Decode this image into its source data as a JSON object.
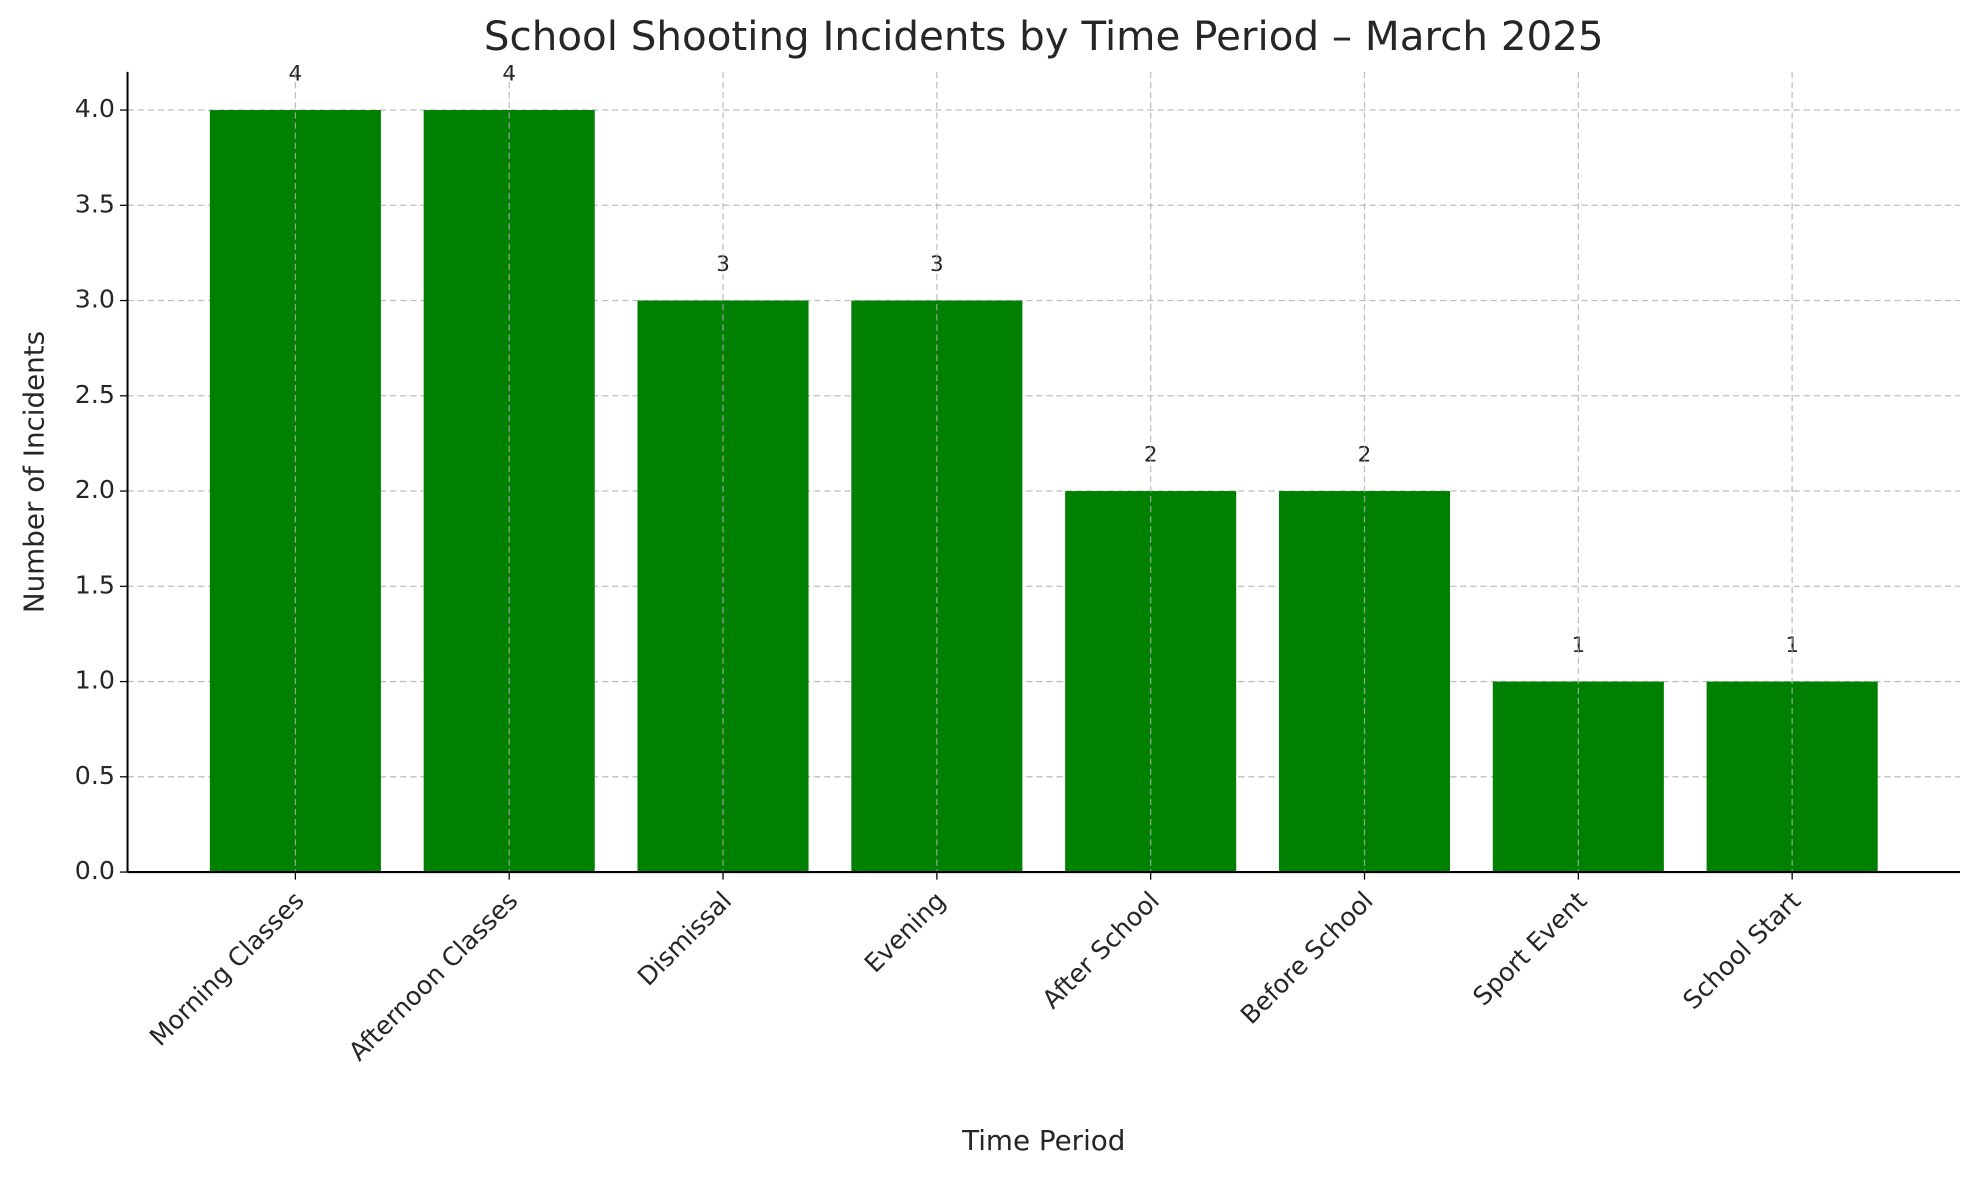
{
  "chart_data": {
    "type": "bar",
    "title": "School Shooting Incidents by Time Period – March 2025",
    "x_label": "Time Period",
    "y_label": "Number of Incidents",
    "categories": [
      "Morning Classes",
      "Afternoon Classes",
      "Dismissal",
      "Evening",
      "After School",
      "Before School",
      "Sport Event",
      "School Start"
    ],
    "values": [
      4,
      4,
      3,
      3,
      2,
      2,
      1,
      1
    ],
    "color": "#008000",
    "ylim": [
      0,
      4.2
    ],
    "yticks": [
      {
        "value": 0,
        "label": "0.0"
      },
      0.5,
      {
        "value": 1,
        "label": "1.0"
      },
      1.5,
      {
        "value": 2,
        "label": "2.0"
      },
      2.5,
      {
        "value": 3,
        "label": "3.0"
      },
      3.5,
      {
        "value": 4,
        "label": "4.0"
      }
    ],
    "grid": true
  }
}
